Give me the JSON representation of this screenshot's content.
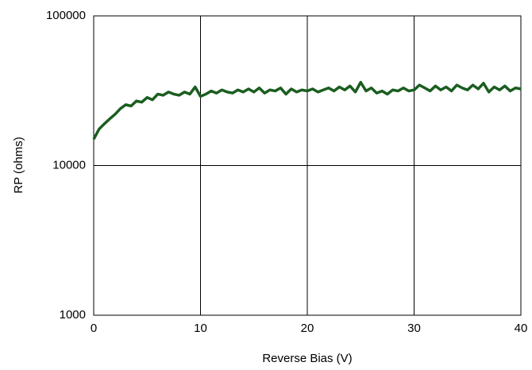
{
  "chart_data": {
    "type": "line",
    "xlabel": "Reverse Bias (V)",
    "ylabel": "RP (ohms)",
    "x": [
      0,
      0.5,
      1,
      1.5,
      2,
      2.5,
      3,
      3.5,
      4,
      4.5,
      5,
      5.5,
      6,
      6.5,
      7,
      7.5,
      8,
      8.5,
      9,
      9.5,
      10,
      10.5,
      11,
      11.5,
      12,
      12.5,
      13,
      13.5,
      14,
      14.5,
      15,
      15.5,
      16,
      16.5,
      17,
      17.5,
      18,
      18.5,
      19,
      19.5,
      20,
      20.5,
      21,
      21.5,
      22,
      22.5,
      23,
      23.5,
      24,
      24.5,
      25,
      25.5,
      26,
      26.5,
      27,
      27.5,
      28,
      28.5,
      29,
      29.5,
      30,
      30.5,
      31,
      31.5,
      32,
      32.5,
      33,
      33.5,
      34,
      34.5,
      35,
      35.5,
      36,
      36.5,
      37,
      37.5,
      38,
      38.5,
      39,
      39.5,
      40
    ],
    "values": [
      15000,
      17500,
      19000,
      20500,
      22000,
      24000,
      25500,
      25000,
      27000,
      26500,
      28500,
      27500,
      30000,
      29500,
      31000,
      30000,
      29500,
      31000,
      30000,
      33500,
      29000,
      30000,
      31500,
      30500,
      32000,
      31000,
      30500,
      32000,
      31000,
      32500,
      31000,
      33000,
      30500,
      32000,
      31500,
      33000,
      30000,
      32500,
      31000,
      32000,
      31500,
      32500,
      31000,
      32000,
      33000,
      31500,
      33500,
      32000,
      34000,
      31000,
      36000,
      31500,
      33000,
      30500,
      31500,
      30000,
      32000,
      31500,
      33000,
      31500,
      32000,
      34500,
      33000,
      31500,
      34000,
      32000,
      33500,
      31500,
      34500,
      33000,
      32000,
      34500,
      32500,
      35500,
      31000,
      33500,
      32000,
      34000,
      31500,
      33000,
      32500
    ],
    "color": "#1b5e20",
    "xlim": [
      0,
      40
    ],
    "xticks": [
      0,
      10,
      20,
      30,
      40
    ],
    "ylim": [
      1000,
      100000
    ],
    "yticks": [
      1000,
      10000,
      100000
    ],
    "ylog": true,
    "grid": true
  }
}
